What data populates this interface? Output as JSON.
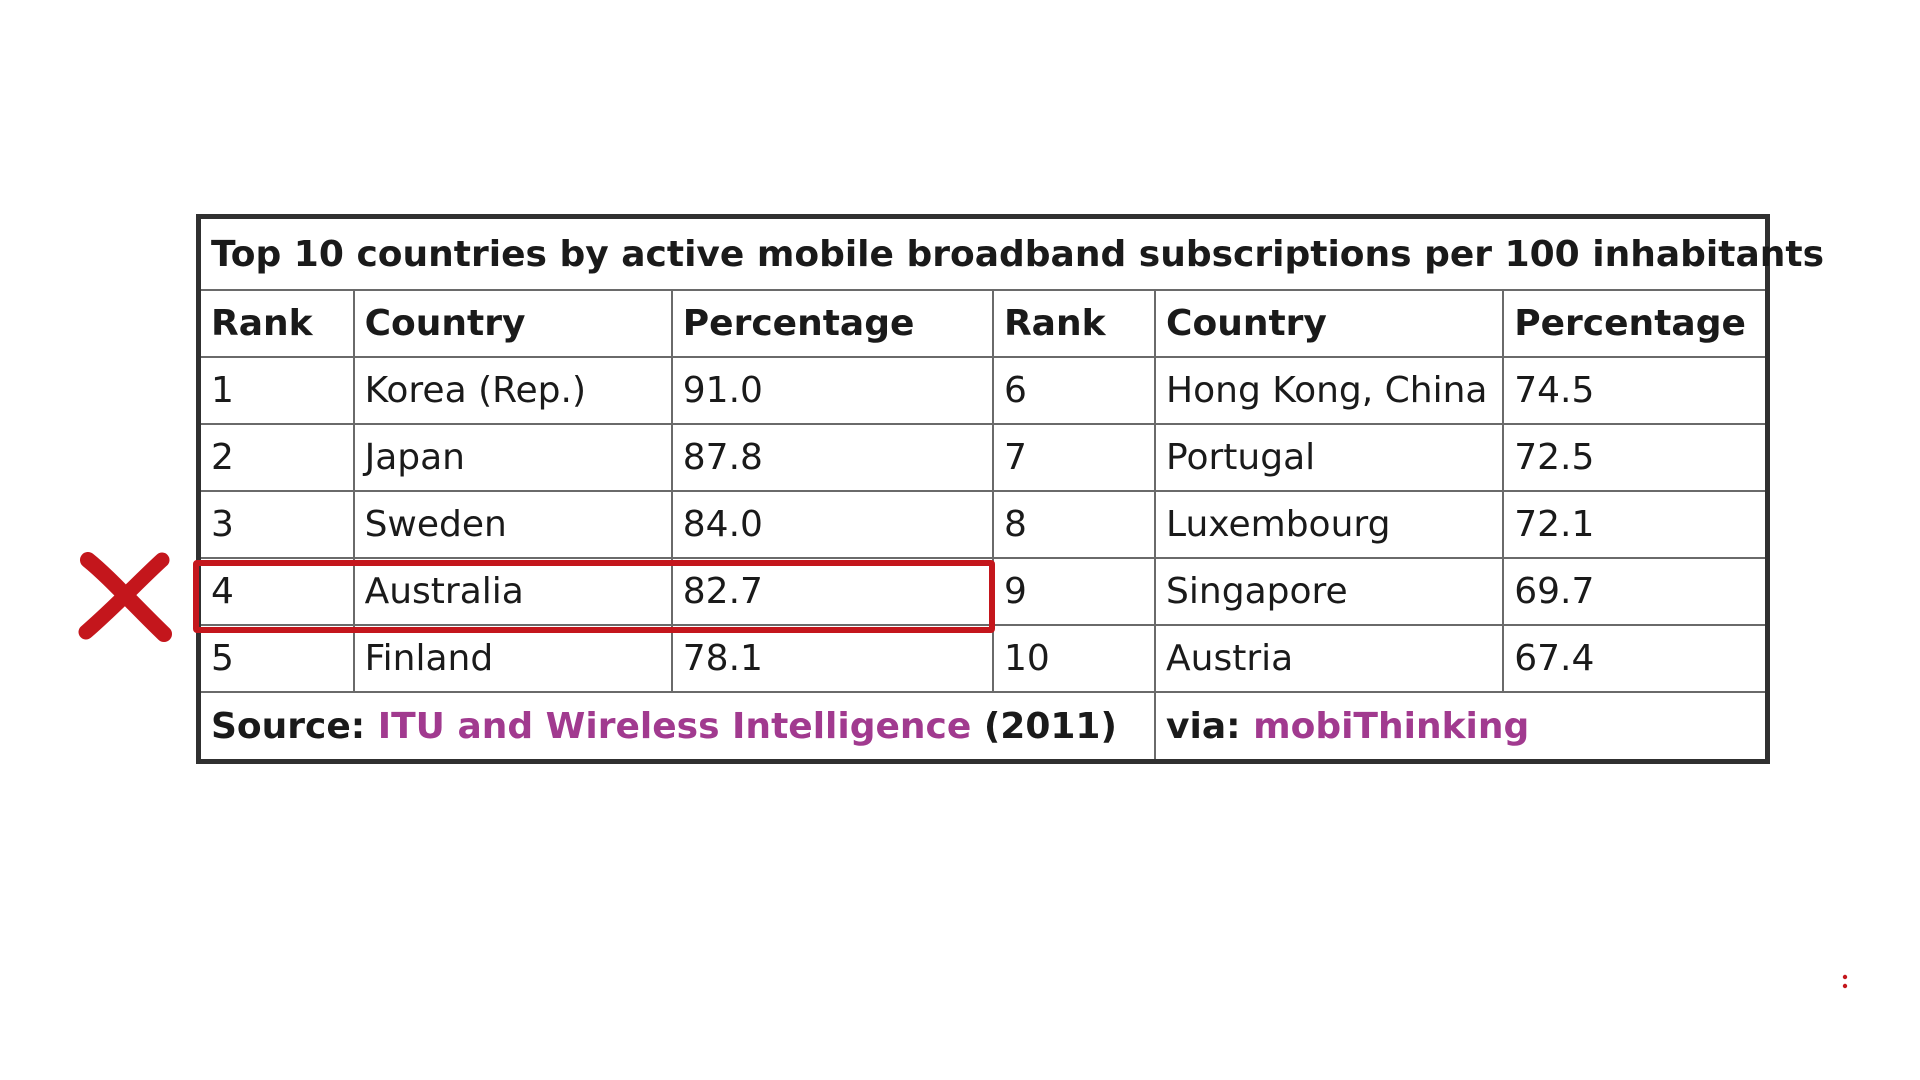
{
  "chart_data": {
    "type": "table",
    "title": "Top 10 countries by active mobile broadband subscriptions per 100 inhabitants",
    "columns": [
      "Rank",
      "Country",
      "Percentage",
      "Rank",
      "Country",
      "Percentage"
    ],
    "rows": [
      [
        "1",
        "Korea (Rep.)",
        "91.0",
        "6",
        "Hong Kong, China",
        "74.5"
      ],
      [
        "2",
        "Japan",
        "87.8",
        "7",
        "Portugal",
        "72.5"
      ],
      [
        "3",
        "Sweden",
        "84.0",
        "8",
        "Luxembourg",
        "72.1"
      ],
      [
        "4",
        "Australia",
        "82.7",
        "9",
        "Singapore",
        "69.7"
      ],
      [
        "5",
        "Finland",
        "78.1",
        "10",
        "Austria",
        "67.4"
      ]
    ],
    "source": {
      "label": "Source: ",
      "link_text": "ITU and Wireless Intelligence",
      "suffix": " (2011)"
    },
    "via": {
      "label": "via: ",
      "link_text": "mobiThinking"
    },
    "highlighted_row_index": 3
  },
  "annotations": {
    "mark_icon": "red-x-mark-icon",
    "mark_color": "#c4161c",
    "highlight_color": "#c4161c",
    "link_color": "#a13a8f"
  }
}
